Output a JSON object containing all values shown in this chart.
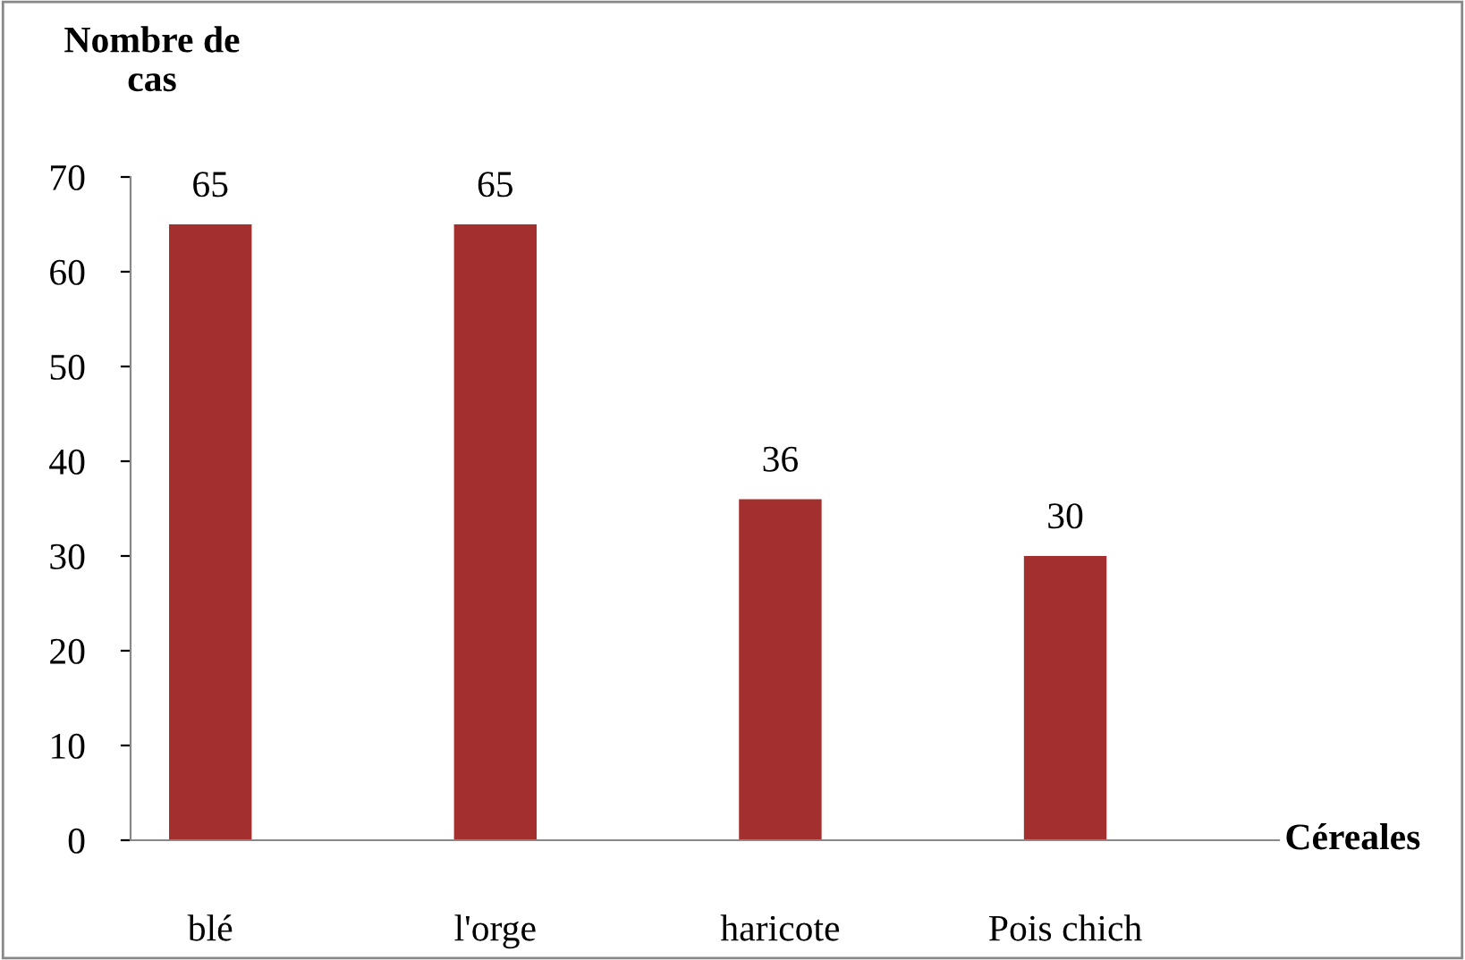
{
  "chart_data": {
    "type": "bar",
    "xlabel": "Céreales",
    "ylabel": "Nombre de\ncas",
    "categories": [
      "blé",
      "l'orge",
      "haricote",
      "Pois chich"
    ],
    "values": [
      65,
      65,
      36,
      30
    ],
    "color": "#a3302e",
    "ylim": [
      0,
      70
    ],
    "yticks": [
      0,
      10,
      20,
      30,
      40,
      50,
      60,
      70
    ],
    "grid": false,
    "data_labels": true
  }
}
